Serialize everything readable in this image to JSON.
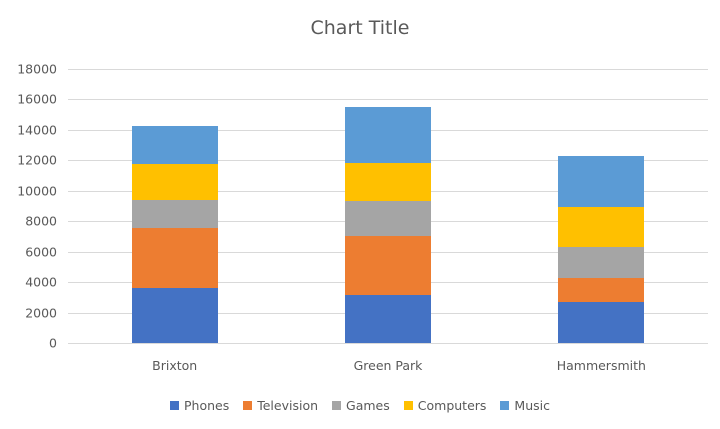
{
  "chart_data": {
    "type": "bar",
    "stacked": true,
    "title": "Chart Title",
    "xlabel": "",
    "ylabel": "",
    "ylim": [
      0,
      18000
    ],
    "yticks": [
      0,
      2000,
      4000,
      6000,
      8000,
      10000,
      12000,
      14000,
      16000,
      18000
    ],
    "grid": true,
    "legend_position": "bottom",
    "categories": [
      "Brixton",
      "Green Park",
      "Hammersmith"
    ],
    "series": [
      {
        "name": "Phones",
        "color": "#4472c4",
        "values": [
          3600,
          3150,
          2700
        ]
      },
      {
        "name": "Television",
        "color": "#ed7d31",
        "values": [
          3950,
          3850,
          1550
        ]
      },
      {
        "name": "Games",
        "color": "#a5a5a5",
        "values": [
          1850,
          2300,
          2050
        ]
      },
      {
        "name": "Computers",
        "color": "#ffc000",
        "values": [
          2350,
          2500,
          2650
        ]
      },
      {
        "name": "Music",
        "color": "#5b9bd5",
        "values": [
          2500,
          3700,
          3350
        ]
      }
    ]
  }
}
